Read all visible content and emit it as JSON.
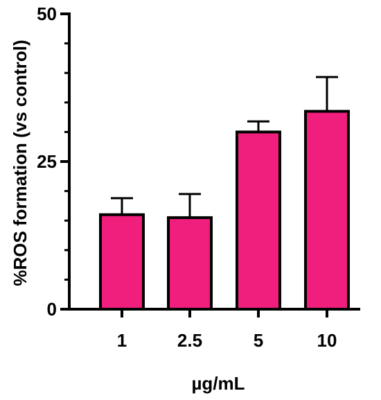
{
  "chart_data": {
    "type": "bar",
    "categories": [
      "1",
      "2.5",
      "5",
      "10"
    ],
    "values": [
      16.0,
      15.5,
      30.0,
      33.5
    ],
    "errors": [
      2.8,
      4.0,
      1.8,
      5.8
    ],
    "xlabel": "µg/mL",
    "ylabel": "%ROS formation (vs control)",
    "ylim": [
      0,
      50
    ],
    "yticks": [
      "0",
      "25",
      "50"
    ],
    "bar_color": "#f01f7d",
    "edge_color": "#000000",
    "grid": false,
    "legend": "none"
  }
}
